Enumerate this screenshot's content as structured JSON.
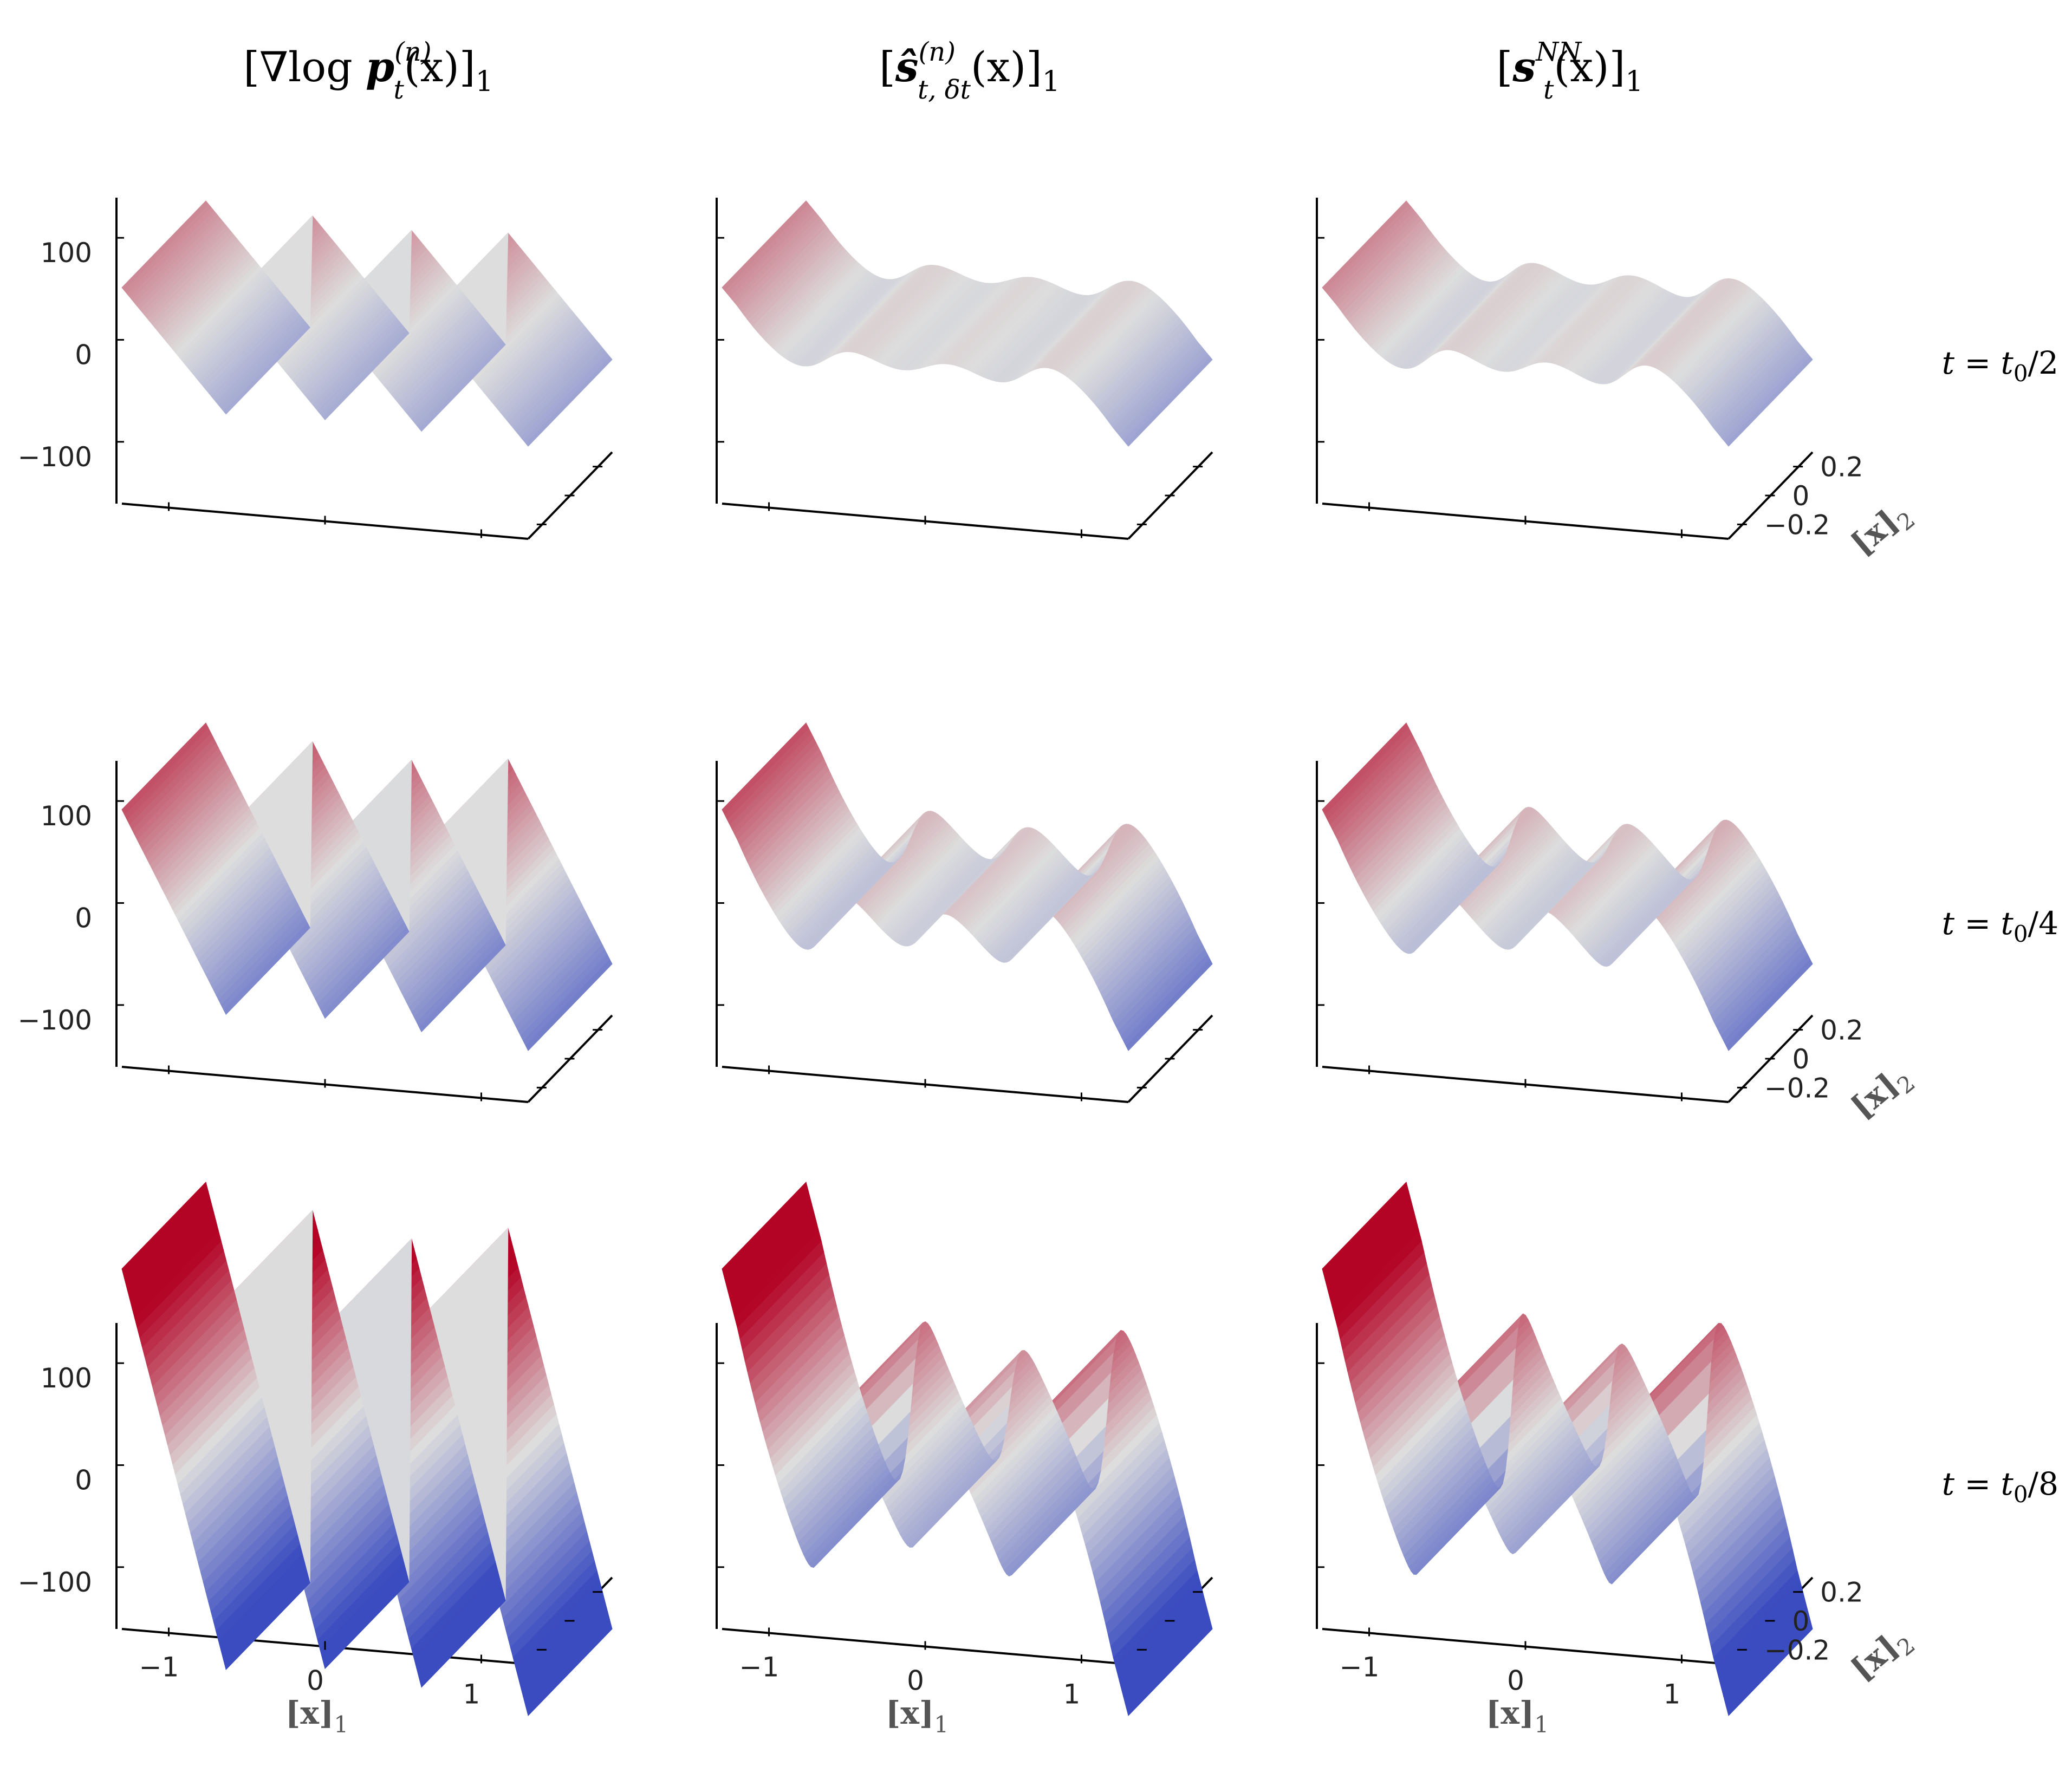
{
  "columns": [
    {
      "title": "[∇log p_t^(n)(x)]_1",
      "title_parts": {
        "pre": "[∇log ",
        "var": "p",
        "sup": "(n)",
        "sub": "t",
        "post": "(x)]",
        "post_sub": "1"
      }
    },
    {
      "title": "[ŝ_{t,δ_t}^(n)(x)]_1",
      "title_parts": {
        "pre": "[",
        "var": "ŝ",
        "sup": "(n)",
        "sub": "t, δt",
        "post": "(x)]",
        "post_sub": "1"
      }
    },
    {
      "title": "[s_t^NN(x)]_1",
      "title_parts": {
        "pre": "[",
        "var": "s",
        "sup": "NN",
        "sub": "t",
        "post": "(x)]",
        "post_sub": "1"
      }
    }
  ],
  "rows": [
    {
      "label": "t = t₀/2",
      "label_parts": {
        "lhs": "t = t",
        "sub": "0",
        "rhs": "/2"
      }
    },
    {
      "label": "t = t₀/4",
      "label_parts": {
        "lhs": "t = t",
        "sub": "0",
        "rhs": "/4"
      }
    },
    {
      "label": "t = t₀/8",
      "label_parts": {
        "lhs": "t = t",
        "sub": "0",
        "rhs": "/8"
      }
    }
  ],
  "axes": {
    "z_ticks": [
      "100",
      "0",
      "−100"
    ],
    "x1_ticks": [
      "−1",
      "0",
      "1"
    ],
    "x2_ticks": [
      "0.2",
      "0",
      "−0.2"
    ],
    "x1_label": "[x]",
    "x1_label_sub": "1",
    "x2_label": "[x]",
    "x2_label_sub": "2"
  },
  "colormap": {
    "low": "#3b4cc0",
    "mid": "#dddddd",
    "high": "#b40426"
  },
  "chart_data": {
    "type": "surface",
    "description_series": "[x]_1 component of score as a function of ([x]_1, [x]_2)",
    "x1_range": [
      -1.3,
      1.3
    ],
    "x2_range": [
      -0.3,
      0.3
    ],
    "z_range": [
      -150,
      150
    ],
    "modes": [
      -0.95,
      -0.3,
      0.3,
      0.95
    ],
    "peak_amplitude": {
      "t0/2": 60,
      "t0/4": 100,
      "t0/8": 200
    },
    "smoothing": {
      "true_score": 0.0,
      "smoothed_estimator": 1.0,
      "neural_network": 1.0
    }
  }
}
